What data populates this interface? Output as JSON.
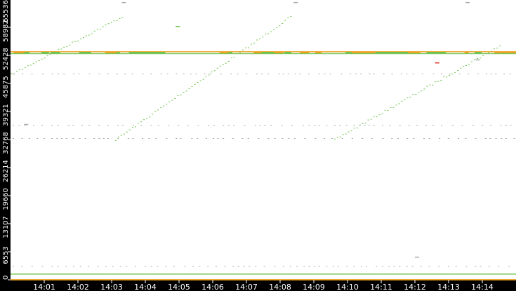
{
  "chart_data": {
    "type": "scatter",
    "title": "",
    "xlabel": "",
    "ylabel": "",
    "xlim": [
      "14:00",
      "14:15"
    ],
    "ylim": [
      0,
      65536
    ],
    "grid": false,
    "x_ticks": [
      "14:01",
      "14:02",
      "14:03",
      "14:04",
      "14:05",
      "14:06",
      "14:07",
      "14:08",
      "14:09",
      "14:10",
      "14:11",
      "14:12",
      "14:13",
      "14:14"
    ],
    "y_ticks": [
      0,
      6553,
      13107,
      19660,
      26214,
      32768,
      39321,
      45875,
      52428,
      58982,
      65536
    ],
    "colors": {
      "green": "#6cc24a",
      "orange": "#f0a020",
      "red": "#e03020",
      "gray": "#aaaaaa",
      "axis_bg": "#000000",
      "axis_text": "#ffffff"
    },
    "series": [
      {
        "kind": "ramp",
        "color": "green",
        "from": [
          "14:00",
          48000
        ],
        "to": [
          "14:03.3",
          61500
        ]
      },
      {
        "kind": "ramp",
        "color": "green",
        "from": [
          "14:03.1",
          32768
        ],
        "to": [
          "14:08.3",
          61500
        ]
      },
      {
        "kind": "ramp",
        "color": "green",
        "from": [
          "14:09.6",
          32768
        ],
        "to": [
          "14:14.5",
          54700
        ]
      },
      {
        "kind": "band",
        "color": "orange",
        "port": 53250,
        "from": "14:00",
        "to": "14:15"
      },
      {
        "kind": "band",
        "color": "green",
        "port": 52800,
        "from": "14:00",
        "to": "14:15"
      },
      {
        "kind": "sparse",
        "color": "gray",
        "port": 48200,
        "from": "14:00",
        "to": "14:15"
      },
      {
        "kind": "sparse",
        "color": "gray",
        "port": 36200,
        "from": "14:00",
        "to": "14:15"
      },
      {
        "kind": "sparse",
        "color": "gray",
        "port": 33100,
        "from": "14:00",
        "to": "14:15"
      },
      {
        "kind": "sparse",
        "color": "gray",
        "port": 3200,
        "from": "14:00",
        "to": "14:15"
      },
      {
        "kind": "band",
        "color": "green",
        "port": 1300,
        "from": "14:00",
        "to": "14:15"
      },
      {
        "kind": "band",
        "color": "orange",
        "port": 0,
        "from": "14:00",
        "to": "14:15"
      }
    ]
  }
}
